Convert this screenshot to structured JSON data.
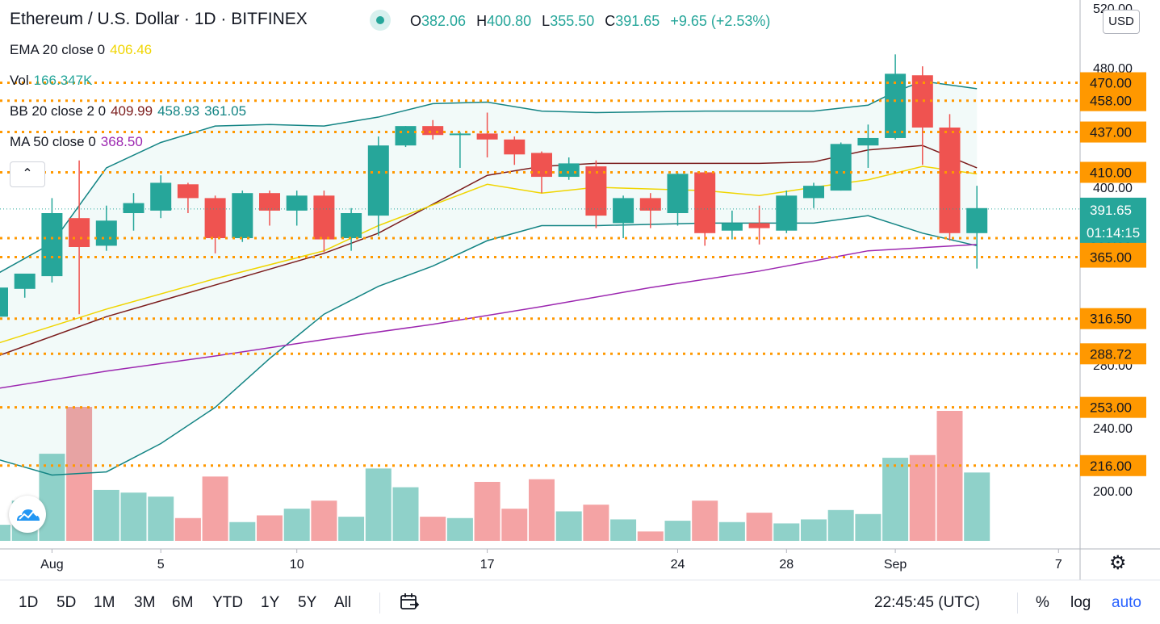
{
  "header": {
    "title": "Ethereum / U.S. Dollar · 1D · BITFINEX",
    "ohlc": {
      "o_label": "O",
      "o": "382.06",
      "h_label": "H",
      "h": "400.80",
      "l_label": "L",
      "l": "355.50",
      "c_label": "C",
      "c": "391.65",
      "change": "+9.65 (+2.53%)"
    }
  },
  "legends": {
    "ema": {
      "label": "EMA 20 close 0",
      "value": "406.46",
      "color": "#f0d500"
    },
    "vol": {
      "label": "Vol",
      "value": "166.347K",
      "color": "#26a69a"
    },
    "bb": {
      "label": "BB 20 close 2 0",
      "basis": "409.99",
      "upper": "458.93",
      "lower": "361.05",
      "basis_color": "#7b1c1c",
      "band_color": "#138484"
    },
    "ma": {
      "label": "MA 50 close 0",
      "value": "368.50",
      "color": "#9c27b0"
    }
  },
  "price_scale": {
    "currency_button": "USD"
  },
  "timeframes": [
    "1D",
    "5D",
    "1M",
    "3M",
    "6M",
    "YTD",
    "1Y",
    "5Y",
    "All"
  ],
  "footer": {
    "time": "22:45:45 (UTC)",
    "percent": "%",
    "log": "log",
    "auto": "auto"
  },
  "icons": {
    "compare": "calendar-range-icon",
    "settings": "gear-icon",
    "collapse": "chevron-up-icon",
    "brand": "tradingview-cloud-icon"
  },
  "colors": {
    "up": "#26a69a",
    "down": "#ef5350",
    "level": "#ff9800",
    "vol_up": "#8fd1c9",
    "vol_down": "#f4a3a4"
  },
  "chart_data": {
    "type": "candlestick",
    "y_axis": {
      "min": 180,
      "max": 520,
      "ticks": [
        200,
        240,
        280,
        400,
        480,
        520
      ]
    },
    "x_ticks": [
      {
        "label": "Aug",
        "index": 2
      },
      {
        "label": "5",
        "index": 6
      },
      {
        "label": "10",
        "index": 11
      },
      {
        "label": "17",
        "index": 18
      },
      {
        "label": "24",
        "index": 25
      },
      {
        "label": "28",
        "index": 29
      },
      {
        "label": "Sep",
        "index": 33
      },
      {
        "label": "7",
        "index": 39
      }
    ],
    "candles": [
      {
        "i": 0,
        "o": 318,
        "h": 342,
        "l": 317,
        "c": 341
      },
      {
        "i": 1,
        "o": 340,
        "h": 351,
        "l": 333,
        "c": 352
      },
      {
        "i": 2,
        "o": 350,
        "h": 396,
        "l": 345,
        "c": 390
      },
      {
        "i": 3,
        "o": 388,
        "h": 418,
        "l": 320,
        "c": 373
      },
      {
        "i": 4,
        "o": 374,
        "h": 393,
        "l": 370,
        "c": 387
      },
      {
        "i": 5,
        "o": 390,
        "h": 398,
        "l": 383,
        "c": 394
      },
      {
        "i": 6,
        "o": 391,
        "h": 408,
        "l": 388,
        "c": 403
      },
      {
        "i": 7,
        "o": 402,
        "h": 403,
        "l": 390,
        "c": 396
      },
      {
        "i": 8,
        "o": 396,
        "h": 397,
        "l": 368,
        "c": 380
      },
      {
        "i": 9,
        "o": 380,
        "h": 399,
        "l": 377,
        "c": 398
      },
      {
        "i": 10,
        "o": 398,
        "h": 399,
        "l": 385,
        "c": 391
      },
      {
        "i": 11,
        "o": 391,
        "h": 399,
        "l": 385,
        "c": 397
      },
      {
        "i": 12,
        "o": 397,
        "h": 399,
        "l": 369,
        "c": 379
      },
      {
        "i": 13,
        "o": 380,
        "h": 392,
        "l": 370,
        "c": 390
      },
      {
        "i": 14,
        "o": 389,
        "h": 434,
        "l": 381,
        "c": 428
      },
      {
        "i": 15,
        "o": 428,
        "h": 441,
        "l": 427,
        "c": 441
      },
      {
        "i": 16,
        "o": 441,
        "h": 445,
        "l": 432,
        "c": 435
      },
      {
        "i": 17,
        "o": 436,
        "h": 437,
        "l": 413,
        "c": 436
      },
      {
        "i": 18,
        "o": 436,
        "h": 450,
        "l": 420,
        "c": 432
      },
      {
        "i": 19,
        "o": 432,
        "h": 434,
        "l": 415,
        "c": 422
      },
      {
        "i": 20,
        "o": 423,
        "h": 424,
        "l": 398,
        "c": 407
      },
      {
        "i": 21,
        "o": 407,
        "h": 420,
        "l": 405,
        "c": 416
      },
      {
        "i": 22,
        "o": 414,
        "h": 418,
        "l": 384,
        "c": 389
      },
      {
        "i": 23,
        "o": 386,
        "h": 397,
        "l": 380,
        "c": 396
      },
      {
        "i": 24,
        "o": 396,
        "h": 398,
        "l": 384,
        "c": 391
      },
      {
        "i": 25,
        "o": 390,
        "h": 410,
        "l": 385,
        "c": 409
      },
      {
        "i": 26,
        "o": 410,
        "h": 411,
        "l": 374,
        "c": 382
      },
      {
        "i": 27,
        "o": 383,
        "h": 391,
        "l": 379,
        "c": 386
      },
      {
        "i": 28,
        "o": 386,
        "h": 393,
        "l": 375,
        "c": 384
      },
      {
        "i": 29,
        "o": 383,
        "h": 399,
        "l": 382,
        "c": 397
      },
      {
        "i": 30,
        "o": 396,
        "h": 403,
        "l": 392,
        "c": 401
      },
      {
        "i": 31,
        "o": 399,
        "h": 430,
        "l": 399,
        "c": 429
      },
      {
        "i": 32,
        "o": 428,
        "h": 442,
        "l": 413,
        "c": 433
      },
      {
        "i": 33,
        "o": 433,
        "h": 489,
        "l": 432,
        "c": 476
      },
      {
        "i": 34,
        "o": 475,
        "h": 481,
        "l": 415,
        "c": 440
      },
      {
        "i": 35,
        "o": 440,
        "h": 449,
        "l": 378,
        "c": 382
      },
      {
        "i": 36,
        "o": 382,
        "h": 401,
        "l": 356,
        "c": 392
      }
    ],
    "volume_relative": [
      {
        "i": 0,
        "v": 0.12,
        "up": true
      },
      {
        "i": 1,
        "v": 0.3,
        "up": true
      },
      {
        "i": 2,
        "v": 0.65,
        "up": true
      },
      {
        "i": 3,
        "v": 1.0,
        "up": false
      },
      {
        "i": 4,
        "v": 0.38,
        "up": true
      },
      {
        "i": 5,
        "v": 0.36,
        "up": true
      },
      {
        "i": 6,
        "v": 0.33,
        "up": true
      },
      {
        "i": 7,
        "v": 0.17,
        "up": false
      },
      {
        "i": 8,
        "v": 0.48,
        "up": false
      },
      {
        "i": 9,
        "v": 0.14,
        "up": true
      },
      {
        "i": 10,
        "v": 0.19,
        "up": false
      },
      {
        "i": 11,
        "v": 0.24,
        "up": true
      },
      {
        "i": 12,
        "v": 0.3,
        "up": false
      },
      {
        "i": 13,
        "v": 0.18,
        "up": true
      },
      {
        "i": 14,
        "v": 0.54,
        "up": true
      },
      {
        "i": 15,
        "v": 0.4,
        "up": true
      },
      {
        "i": 16,
        "v": 0.18,
        "up": false
      },
      {
        "i": 17,
        "v": 0.17,
        "up": true
      },
      {
        "i": 18,
        "v": 0.44,
        "up": false
      },
      {
        "i": 19,
        "v": 0.24,
        "up": false
      },
      {
        "i": 20,
        "v": 0.46,
        "up": false
      },
      {
        "i": 21,
        "v": 0.22,
        "up": true
      },
      {
        "i": 22,
        "v": 0.27,
        "up": false
      },
      {
        "i": 23,
        "v": 0.16,
        "up": true
      },
      {
        "i": 24,
        "v": 0.07,
        "up": false
      },
      {
        "i": 25,
        "v": 0.15,
        "up": true
      },
      {
        "i": 26,
        "v": 0.3,
        "up": false
      },
      {
        "i": 27,
        "v": 0.14,
        "up": true
      },
      {
        "i": 28,
        "v": 0.21,
        "up": false
      },
      {
        "i": 29,
        "v": 0.13,
        "up": true
      },
      {
        "i": 30,
        "v": 0.16,
        "up": true
      },
      {
        "i": 31,
        "v": 0.23,
        "up": true
      },
      {
        "i": 32,
        "v": 0.2,
        "up": true
      },
      {
        "i": 33,
        "v": 0.62,
        "up": true
      },
      {
        "i": 34,
        "v": 0.64,
        "up": false
      },
      {
        "i": 35,
        "v": 0.97,
        "up": false
      },
      {
        "i": 36,
        "v": 0.51,
        "up": true
      }
    ],
    "levels": [
      "470.00",
      "458.00",
      "437.00",
      "410.00",
      "380.00",
      "365.00",
      "316.50",
      "288.72",
      "253.00",
      "216.00"
    ],
    "last_price": {
      "value": "391.65",
      "countdown": "01:14:15"
    },
    "indicators": {
      "ema20": [
        [
          0,
          297
        ],
        [
          4,
          324
        ],
        [
          8,
          348
        ],
        [
          12,
          370
        ],
        [
          14,
          385
        ],
        [
          18,
          402
        ],
        [
          20,
          398
        ],
        [
          22,
          400
        ],
        [
          26,
          399
        ],
        [
          28,
          397
        ],
        [
          30,
          400
        ],
        [
          32,
          405
        ],
        [
          34,
          414
        ],
        [
          36,
          409
        ]
      ],
      "bb_basis": [
        [
          0,
          287
        ],
        [
          4,
          318
        ],
        [
          8,
          343
        ],
        [
          12,
          368
        ],
        [
          14,
          382
        ],
        [
          18,
          408
        ],
        [
          20,
          414
        ],
        [
          22,
          416
        ],
        [
          26,
          416
        ],
        [
          28,
          416
        ],
        [
          30,
          417
        ],
        [
          32,
          425
        ],
        [
          34,
          428
        ],
        [
          36,
          413
        ]
      ],
      "bb_upper": [
        [
          0,
          352
        ],
        [
          2,
          376
        ],
        [
          4,
          413
        ],
        [
          6,
          430
        ],
        [
          8,
          441
        ],
        [
          10,
          442
        ],
        [
          12,
          441
        ],
        [
          14,
          447
        ],
        [
          16,
          456
        ],
        [
          18,
          457
        ],
        [
          20,
          451
        ],
        [
          22,
          450
        ],
        [
          26,
          451
        ],
        [
          30,
          451
        ],
        [
          32,
          455
        ],
        [
          33,
          464
        ],
        [
          34,
          471
        ],
        [
          36,
          466
        ]
      ],
      "bb_lower": [
        [
          0,
          220
        ],
        [
          2,
          210
        ],
        [
          4,
          212
        ],
        [
          6,
          230
        ],
        [
          8,
          253
        ],
        [
          10,
          285
        ],
        [
          12,
          320
        ],
        [
          14,
          342
        ],
        [
          16,
          358
        ],
        [
          18,
          378
        ],
        [
          20,
          385
        ],
        [
          22,
          385
        ],
        [
          26,
          386
        ],
        [
          30,
          386
        ],
        [
          32,
          389
        ],
        [
          34,
          382
        ],
        [
          36,
          374
        ]
      ],
      "ma50": [
        [
          0,
          265
        ],
        [
          4,
          276
        ],
        [
          8,
          287
        ],
        [
          12,
          300
        ],
        [
          16,
          312
        ],
        [
          20,
          326
        ],
        [
          24,
          341
        ],
        [
          28,
          354
        ],
        [
          32,
          370
        ],
        [
          36,
          375
        ]
      ]
    }
  }
}
